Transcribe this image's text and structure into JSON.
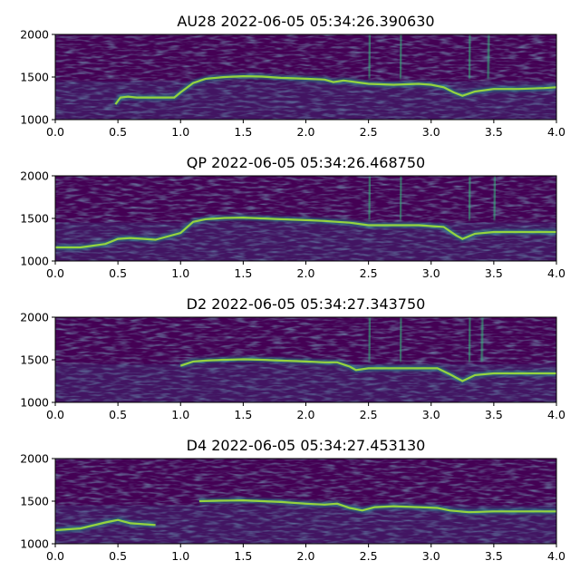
{
  "chart_data": [
    {
      "type": "heatmap",
      "title": "AU28 2022-06-05 05:34:26.390630",
      "xlabel": "",
      "ylabel": "",
      "xlim": [
        0.0,
        4.0
      ],
      "ylim": [
        1000,
        2000
      ],
      "x_ticks": [
        "0.0",
        "0.5",
        "1.0",
        "1.5",
        "2.0",
        "2.5",
        "3.0",
        "3.5",
        "4.0"
      ],
      "y_ticks": [
        "1000",
        "1500",
        "2000"
      ],
      "colormap": "viridis",
      "traces": [
        {
          "x": [
            0.48,
            0.52,
            0.58,
            0.65,
            0.8,
            0.95,
            1.0,
            1.1,
            1.2,
            1.35,
            1.5,
            1.65,
            1.8,
            2.0,
            2.15,
            2.22,
            2.3,
            2.4,
            2.5,
            2.7,
            2.9,
            3.0,
            3.1,
            3.18,
            3.25,
            3.35,
            3.5,
            3.7,
            3.9,
            4.0
          ],
          "y": [
            1180,
            1260,
            1270,
            1260,
            1260,
            1260,
            1320,
            1430,
            1480,
            1500,
            1510,
            1505,
            1490,
            1480,
            1470,
            1440,
            1460,
            1440,
            1420,
            1410,
            1420,
            1410,
            1380,
            1320,
            1280,
            1330,
            1360,
            1360,
            1370,
            1380
          ]
        }
      ],
      "verticals": [
        2.5,
        2.75,
        3.3,
        3.45
      ]
    },
    {
      "type": "heatmap",
      "title": "QP 2022-06-05 05:34:26.468750",
      "xlabel": "",
      "ylabel": "",
      "xlim": [
        0.0,
        4.0
      ],
      "ylim": [
        1000,
        2000
      ],
      "x_ticks": [
        "0.0",
        "0.5",
        "1.0",
        "1.5",
        "2.0",
        "2.5",
        "3.0",
        "3.5",
        "4.0"
      ],
      "y_ticks": [
        "1000",
        "1500",
        "2000"
      ],
      "colormap": "viridis",
      "traces": [
        {
          "x": [
            0.0,
            0.2,
            0.4,
            0.5,
            0.6,
            0.8,
            1.0,
            1.1,
            1.2,
            1.35,
            1.5,
            1.65,
            1.8,
            2.0,
            2.15,
            2.25,
            2.35,
            2.5,
            2.7,
            2.9,
            3.0,
            3.1,
            3.2,
            3.25,
            3.35,
            3.5,
            3.7,
            4.0
          ],
          "y": [
            1160,
            1160,
            1200,
            1260,
            1270,
            1250,
            1330,
            1460,
            1490,
            1505,
            1510,
            1500,
            1490,
            1480,
            1470,
            1460,
            1450,
            1420,
            1420,
            1420,
            1410,
            1400,
            1300,
            1260,
            1320,
            1340,
            1340,
            1340
          ]
        }
      ],
      "verticals": [
        2.5,
        2.75,
        3.3,
        3.5
      ]
    },
    {
      "type": "heatmap",
      "title": "D2 2022-06-05 05:34:27.343750",
      "xlabel": "",
      "ylabel": "",
      "xlim": [
        0.0,
        4.0
      ],
      "ylim": [
        1000,
        2000
      ],
      "x_ticks": [
        "0.0",
        "0.5",
        "1.0",
        "1.5",
        "2.0",
        "2.5",
        "3.0",
        "3.5",
        "4.0"
      ],
      "y_ticks": [
        "1000",
        "1500",
        "2000"
      ],
      "colormap": "viridis",
      "traces": [
        {
          "x": [
            1.0,
            1.1,
            1.2,
            1.35,
            1.5,
            1.65,
            1.8,
            2.0,
            2.15,
            2.25,
            2.35,
            2.4,
            2.5,
            2.7,
            2.9,
            3.05,
            3.15,
            3.25,
            3.35,
            3.5,
            3.7,
            4.0
          ],
          "y": [
            1430,
            1480,
            1490,
            1500,
            1505,
            1500,
            1490,
            1480,
            1470,
            1470,
            1420,
            1380,
            1400,
            1400,
            1400,
            1400,
            1330,
            1250,
            1320,
            1340,
            1340,
            1340
          ]
        }
      ],
      "verticals": [
        2.5,
        2.75,
        3.3,
        3.4
      ]
    },
    {
      "type": "heatmap",
      "title": "D4 2022-06-05 05:34:27.453130",
      "xlabel": "",
      "ylabel": "",
      "xlim": [
        0.0,
        4.0
      ],
      "ylim": [
        1000,
        2000
      ],
      "x_ticks": [
        "0.0",
        "0.5",
        "1.0",
        "1.5",
        "2.0",
        "2.5",
        "3.0",
        "3.5",
        "4.0"
      ],
      "y_ticks": [
        "1000",
        "1500",
        "2000"
      ],
      "colormap": "viridis",
      "traces": [
        {
          "x": [
            1.15,
            1.3,
            1.5,
            1.65,
            1.8,
            2.0,
            2.15,
            2.25,
            2.35,
            2.45,
            2.55,
            2.7,
            2.9,
            3.05,
            3.15,
            3.3,
            3.5,
            3.7,
            4.0
          ],
          "y": [
            1500,
            1505,
            1510,
            1500,
            1490,
            1470,
            1460,
            1470,
            1420,
            1390,
            1430,
            1440,
            1430,
            1420,
            1390,
            1370,
            1380,
            1380,
            1380
          ]
        },
        {
          "x": [
            0.0,
            0.2,
            0.4,
            0.5,
            0.6,
            0.8
          ],
          "y": [
            1160,
            1180,
            1250,
            1280,
            1240,
            1220
          ]
        }
      ],
      "verticals": []
    }
  ]
}
